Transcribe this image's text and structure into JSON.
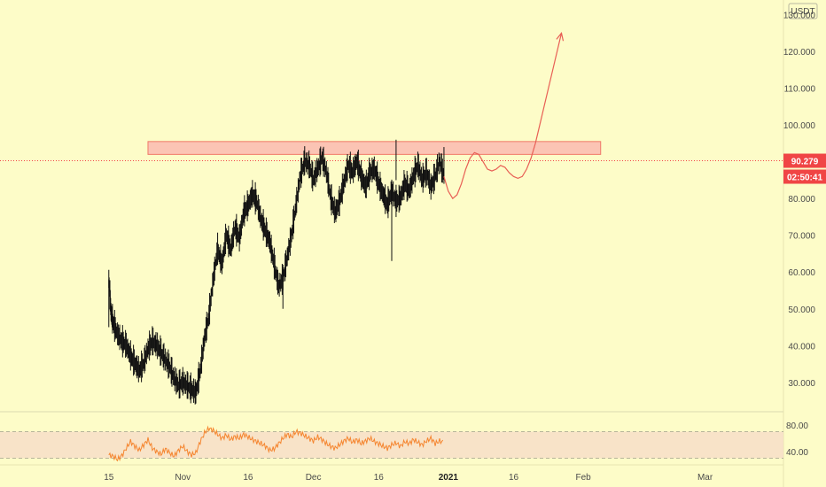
{
  "chart_data": {
    "type": "candlestick-line",
    "currency_label": "USDT",
    "price_axis": {
      "ylim": [
        22,
        134
      ],
      "ticks": [
        "130.000",
        "120.000",
        "110.000",
        "100.000",
        "80.000",
        "70.000",
        "60.000",
        "50.000",
        "40.000",
        "30.000"
      ],
      "tick_values": [
        130,
        120,
        110,
        100,
        80,
        70,
        60,
        50,
        40,
        30
      ]
    },
    "x_ticks": [
      {
        "label": "15",
        "day": 15
      },
      {
        "label": "Nov",
        "day": 32
      },
      {
        "label": "16",
        "day": 47
      },
      {
        "label": "Dec",
        "day": 62
      },
      {
        "label": "16",
        "day": 77
      },
      {
        "label": "2021",
        "day": 93,
        "bold": true
      },
      {
        "label": "16",
        "day": 108
      },
      {
        "label": "Feb",
        "day": 124
      },
      {
        "label": "Mar",
        "day": 152
      }
    ],
    "x_range": [
      -10,
      170
    ],
    "current_price": {
      "label": "90.279",
      "value": 90.279,
      "color": "#f04545"
    },
    "countdown": {
      "label": "02:50:41",
      "color": "#f04545"
    },
    "resistance_zone": {
      "from_day": 24,
      "to_day": 128,
      "low": 92,
      "high": 95.5,
      "fill": "#fbc4b4",
      "stroke": "#f07868"
    },
    "price_series": [
      [
        15,
        58
      ],
      [
        15.5,
        49
      ],
      [
        16,
        46
      ],
      [
        17,
        43
      ],
      [
        18,
        41
      ],
      [
        19,
        40
      ],
      [
        20,
        37
      ],
      [
        21,
        35
      ],
      [
        22,
        33
      ],
      [
        23,
        35
      ],
      [
        24,
        39
      ],
      [
        25,
        41
      ],
      [
        26,
        40
      ],
      [
        27,
        38
      ],
      [
        28,
        36
      ],
      [
        29,
        34
      ],
      [
        30,
        31
      ],
      [
        31,
        29
      ],
      [
        32,
        30
      ],
      [
        33,
        29
      ],
      [
        34,
        28
      ],
      [
        35,
        27
      ],
      [
        36,
        33
      ],
      [
        37,
        42
      ],
      [
        38,
        48
      ],
      [
        39,
        58
      ],
      [
        40,
        66
      ],
      [
        41,
        62
      ],
      [
        42,
        70
      ],
      [
        43,
        66
      ],
      [
        44,
        72
      ],
      [
        45,
        69
      ],
      [
        46,
        76
      ],
      [
        47,
        78
      ],
      [
        48,
        81
      ],
      [
        49,
        79
      ],
      [
        50,
        74
      ],
      [
        51,
        71
      ],
      [
        52,
        68
      ],
      [
        53,
        62
      ],
      [
        54,
        56
      ],
      [
        55,
        58
      ],
      [
        56,
        64
      ],
      [
        57,
        70
      ],
      [
        58,
        78
      ],
      [
        59,
        86
      ],
      [
        60,
        90
      ],
      [
        61,
        89
      ],
      [
        62,
        85
      ],
      [
        63,
        88
      ],
      [
        64,
        91
      ],
      [
        65,
        87
      ],
      [
        66,
        80
      ],
      [
        67,
        76
      ],
      [
        68,
        79
      ],
      [
        69,
        84
      ],
      [
        70,
        89
      ],
      [
        71,
        87
      ],
      [
        72,
        90
      ],
      [
        73,
        86
      ],
      [
        74,
        83
      ],
      [
        75,
        87
      ],
      [
        76,
        88
      ],
      [
        77,
        84
      ],
      [
        78,
        81
      ],
      [
        79,
        78
      ],
      [
        80,
        82
      ],
      [
        81,
        79
      ],
      [
        82,
        80
      ],
      [
        83,
        84
      ],
      [
        84,
        82
      ],
      [
        85,
        86
      ],
      [
        86,
        89
      ],
      [
        87,
        85
      ],
      [
        88,
        87
      ],
      [
        89,
        83
      ],
      [
        90,
        86
      ],
      [
        91,
        90
      ],
      [
        92,
        86
      ]
    ],
    "projection_series": [
      [
        92,
        86
      ],
      [
        93,
        82
      ],
      [
        94,
        80
      ],
      [
        95,
        81
      ],
      [
        96,
        84
      ],
      [
        97,
        88
      ],
      [
        98,
        91
      ],
      [
        99,
        92.5
      ],
      [
        100,
        92
      ],
      [
        101,
        90
      ],
      [
        102,
        88
      ],
      [
        103,
        87.5
      ],
      [
        104,
        88
      ],
      [
        105,
        89
      ],
      [
        106,
        88.5
      ],
      [
        107,
        87
      ],
      [
        108,
        86
      ],
      [
        109,
        85.5
      ],
      [
        110,
        86
      ],
      [
        111,
        88
      ],
      [
        112,
        91
      ],
      [
        113,
        95
      ],
      [
        114,
        100
      ],
      [
        115,
        105
      ],
      [
        116,
        110
      ],
      [
        117,
        115
      ],
      [
        118,
        120
      ],
      [
        119,
        125
      ]
    ],
    "rsi": {
      "ticks": [
        "80.00",
        "40.00"
      ],
      "tick_values": [
        80,
        40
      ],
      "ylim": [
        20,
        100
      ],
      "band": [
        30,
        70
      ],
      "color": "#f5852f",
      "values": [
        [
          15,
          35
        ],
        [
          16,
          33
        ],
        [
          17,
          28
        ],
        [
          18,
          34
        ],
        [
          19,
          45
        ],
        [
          20,
          55
        ],
        [
          21,
          48
        ],
        [
          22,
          42
        ],
        [
          23,
          50
        ],
        [
          24,
          58
        ],
        [
          25,
          45
        ],
        [
          26,
          40
        ],
        [
          27,
          36
        ],
        [
          28,
          44
        ],
        [
          29,
          38
        ],
        [
          30,
          33
        ],
        [
          31,
          42
        ],
        [
          32,
          48
        ],
        [
          33,
          40
        ],
        [
          34,
          35
        ],
        [
          35,
          38
        ],
        [
          36,
          55
        ],
        [
          37,
          68
        ],
        [
          38,
          75
        ],
        [
          39,
          72
        ],
        [
          40,
          66
        ],
        [
          41,
          60
        ],
        [
          42,
          65
        ],
        [
          43,
          58
        ],
        [
          44,
          63
        ],
        [
          45,
          60
        ],
        [
          46,
          66
        ],
        [
          47,
          62
        ],
        [
          48,
          58
        ],
        [
          49,
          55
        ],
        [
          50,
          52
        ],
        [
          51,
          48
        ],
        [
          52,
          42
        ],
        [
          53,
          44
        ],
        [
          54,
          52
        ],
        [
          55,
          60
        ],
        [
          56,
          66
        ],
        [
          57,
          62
        ],
        [
          58,
          70
        ],
        [
          59,
          68
        ],
        [
          60,
          64
        ],
        [
          61,
          60
        ],
        [
          62,
          56
        ],
        [
          63,
          62
        ],
        [
          64,
          58
        ],
        [
          65,
          52
        ],
        [
          66,
          48
        ],
        [
          67,
          45
        ],
        [
          68,
          50
        ],
        [
          69,
          56
        ],
        [
          70,
          60
        ],
        [
          71,
          54
        ],
        [
          72,
          58
        ],
        [
          73,
          52
        ],
        [
          74,
          56
        ],
        [
          75,
          60
        ],
        [
          76,
          55
        ],
        [
          77,
          52
        ],
        [
          78,
          48
        ],
        [
          79,
          45
        ],
        [
          80,
          50
        ],
        [
          81,
          53
        ],
        [
          82,
          48
        ],
        [
          83,
          55
        ],
        [
          84,
          52
        ],
        [
          85,
          58
        ],
        [
          86,
          54
        ],
        [
          87,
          50
        ],
        [
          88,
          56
        ],
        [
          89,
          60
        ],
        [
          90,
          52
        ],
        [
          91,
          56
        ],
        [
          92,
          54
        ]
      ]
    }
  }
}
